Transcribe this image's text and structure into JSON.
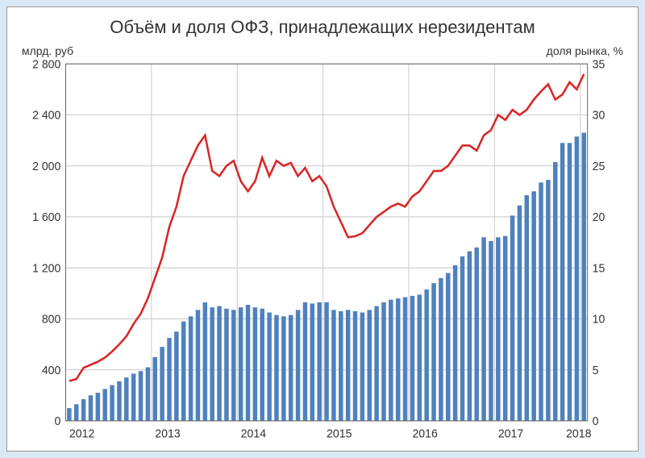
{
  "chart": {
    "title": "Объём и доля ОФЗ, принадлежащих нерезидентам",
    "left_axis_label": "млрд. руб",
    "right_axis_label": "доля рынка, %",
    "type": "bar+line",
    "background_color": "#ffffff",
    "page_background": "#dbe8f5",
    "grid_color": "#cccccc",
    "border_color": "#666666",
    "title_fontsize": 22,
    "axis_label_fontsize": 14,
    "tick_fontsize": 14,
    "left_y": {
      "min": 0,
      "max": 2800,
      "step": 400,
      "ticks": [
        0,
        400,
        800,
        1200,
        1600,
        2000,
        2400,
        2800
      ]
    },
    "right_y": {
      "min": 0,
      "max": 35,
      "step": 5,
      "ticks": [
        0,
        5,
        10,
        15,
        20,
        25,
        30,
        35
      ]
    },
    "x_tick_labels": [
      "2012",
      "2013",
      "2014",
      "2015",
      "2016",
      "2017",
      "2018"
    ],
    "x_tick_positions": [
      0,
      12,
      24,
      36,
      48,
      60,
      72
    ],
    "n_points": 73,
    "bars": {
      "color": "#4f81bd",
      "width_ratio": 0.62,
      "values": [
        100,
        130,
        170,
        200,
        220,
        250,
        280,
        310,
        340,
        370,
        390,
        420,
        500,
        580,
        650,
        700,
        780,
        820,
        870,
        930,
        890,
        900,
        880,
        870,
        890,
        910,
        890,
        880,
        850,
        830,
        820,
        830,
        870,
        930,
        920,
        930,
        930,
        870,
        860,
        870,
        860,
        850,
        870,
        900,
        930,
        950,
        960,
        970,
        980,
        990,
        1030,
        1080,
        1120,
        1160,
        1220,
        1290,
        1330,
        1360,
        1440,
        1410,
        1440,
        1450,
        1610,
        1690,
        1770,
        1800,
        1870,
        1890,
        2030,
        2180,
        2180,
        2230,
        2260
      ]
    },
    "line": {
      "color": "#d92626",
      "width": 2.5,
      "values": [
        3.9,
        4.1,
        5.2,
        5.5,
        5.8,
        6.2,
        6.8,
        7.5,
        8.3,
        9.5,
        10.5,
        12.0,
        14.0,
        16.0,
        19.0,
        21.0,
        24.0,
        25.5,
        27.0,
        28.0,
        24.5,
        24.0,
        25.0,
        25.5,
        23.5,
        22.5,
        23.5,
        25.8,
        24.0,
        25.5,
        25.0,
        25.3,
        24.0,
        24.8,
        23.5,
        24.0,
        23.0,
        21.0,
        19.5,
        18.0,
        18.1,
        18.4,
        19.2,
        20.0,
        20.5,
        21.0,
        21.3,
        21.0,
        22.0,
        22.5,
        23.5,
        24.5,
        24.5,
        25.0,
        26.0,
        27.0,
        27.0,
        26.5,
        28.0,
        28.5,
        30.0,
        29.5,
        30.5,
        30.0,
        30.5,
        31.5,
        32.3,
        33.0,
        31.5,
        32.0,
        33.2,
        32.5,
        34.0
      ]
    }
  }
}
